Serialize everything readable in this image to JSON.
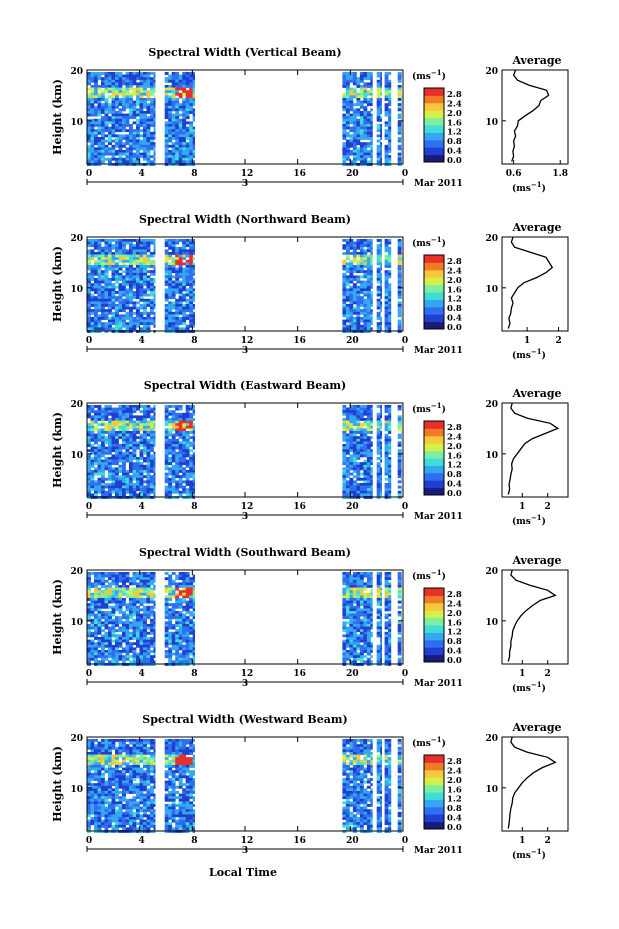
{
  "figure": {
    "x_axis_label": "Local Time",
    "date_label": "Mar 2011",
    "day_label": "3",
    "colorbar_unit_base": "(ms",
    "colorbar_unit_exp": "−1",
    "colorbar_unit_close": ")",
    "profile_title": "Average",
    "profile_unit_base": "(ms",
    "profile_unit_exp": "−1",
    "profile_unit_close": ")",
    "y_label": "Height (km)"
  },
  "colors": {
    "scale": [
      "#1a1a7a",
      "#1f3fd0",
      "#2f6ef0",
      "#33a8f0",
      "#3fdcd8",
      "#7cf0a0",
      "#d6f04a",
      "#f8c83a",
      "#f07a25",
      "#e8302a"
    ]
  },
  "chart_data": [
    {
      "type": "heatmap",
      "title": "Spectral Width (Vertical Beam)",
      "xlabel": "",
      "ylabel": "Height (km)",
      "x_ticks": [
        "0",
        "4",
        "8",
        "12",
        "16",
        "20",
        "0"
      ],
      "y_ticks": [
        "20",
        "10"
      ],
      "xlim": [
        0,
        24
      ],
      "ylim": [
        1.5,
        20
      ],
      "colorbar_ticks": [
        "2.8",
        "2.4",
        "2.0",
        "1.6",
        "1.2",
        "0.8",
        "0.4",
        "0.0"
      ],
      "data_segments_hours": [
        [
          0,
          5.2
        ],
        [
          5.9,
          8.2
        ],
        [
          19.4,
          21.7
        ],
        [
          22.0,
          22.4
        ],
        [
          22.6,
          23.1
        ],
        [
          23.6,
          23.9
        ]
      ],
      "enhanced_layer_km": [
        15,
        17
      ],
      "profile": {
        "type": "line",
        "title": "Average",
        "x_ticks": [
          "0.6",
          "1.8"
        ],
        "xlim": [
          0.3,
          2.0
        ],
        "y_ticks": [
          "20",
          "10"
        ],
        "heights_km": [
          2,
          3,
          4,
          5,
          6,
          7,
          8,
          9,
          10,
          11,
          12,
          13,
          14,
          15,
          16,
          17,
          18,
          19,
          20
        ],
        "values": [
          0.55,
          0.6,
          0.58,
          0.62,
          0.6,
          0.65,
          0.62,
          0.7,
          0.72,
          0.9,
          1.1,
          1.25,
          1.3,
          1.5,
          1.45,
          1.0,
          0.7,
          0.6,
          0.65
        ]
      }
    },
    {
      "type": "heatmap",
      "title": "Spectral Width (Northward Beam)",
      "xlabel": "",
      "ylabel": "Height (km)",
      "x_ticks": [
        "0",
        "4",
        "8",
        "12",
        "16",
        "20",
        "0"
      ],
      "y_ticks": [
        "20",
        "10"
      ],
      "xlim": [
        0,
        24
      ],
      "ylim": [
        1.5,
        20
      ],
      "colorbar_ticks": [
        "2.8",
        "2.4",
        "2.0",
        "1.6",
        "1.2",
        "0.8",
        "0.4",
        "0.0"
      ],
      "data_segments_hours": [
        [
          0,
          5.2
        ],
        [
          5.9,
          8.2
        ],
        [
          19.4,
          21.7
        ],
        [
          22.0,
          22.4
        ],
        [
          22.6,
          23.1
        ],
        [
          23.6,
          23.9
        ]
      ],
      "enhanced_layer_km": [
        15,
        17
      ],
      "profile": {
        "type": "line",
        "title": "Average",
        "x_ticks": [
          "1",
          "2"
        ],
        "xlim": [
          0.2,
          2.3
        ],
        "y_ticks": [
          "20",
          "10"
        ],
        "heights_km": [
          2,
          3,
          4,
          5,
          6,
          7,
          8,
          9,
          10,
          11,
          12,
          13,
          14,
          15,
          16,
          17,
          18,
          19,
          20
        ],
        "values": [
          0.4,
          0.45,
          0.42,
          0.48,
          0.5,
          0.55,
          0.5,
          0.6,
          0.7,
          0.9,
          1.3,
          1.6,
          1.8,
          1.7,
          1.6,
          1.1,
          0.6,
          0.5,
          0.55
        ]
      }
    },
    {
      "type": "heatmap",
      "title": "Spectral Width (Eastward Beam)",
      "xlabel": "",
      "ylabel": "Height (km)",
      "x_ticks": [
        "0",
        "4",
        "8",
        "12",
        "16",
        "20",
        "0"
      ],
      "y_ticks": [
        "20",
        "10"
      ],
      "xlim": [
        0,
        24
      ],
      "ylim": [
        1.5,
        20
      ],
      "colorbar_ticks": [
        "2.8",
        "2.4",
        "2.0",
        "1.6",
        "1.2",
        "0.8",
        "0.4",
        "0.0"
      ],
      "data_segments_hours": [
        [
          0,
          5.2
        ],
        [
          5.9,
          8.2
        ],
        [
          19.4,
          21.7
        ],
        [
          22.0,
          22.4
        ],
        [
          22.6,
          23.1
        ],
        [
          23.6,
          23.9
        ]
      ],
      "enhanced_layer_km": [
        15,
        17
      ],
      "profile": {
        "type": "line",
        "title": "Average",
        "x_ticks": [
          "1",
          "2"
        ],
        "xlim": [
          0.2,
          2.8
        ],
        "y_ticks": [
          "20",
          "10"
        ],
        "heights_km": [
          2,
          3,
          4,
          5,
          6,
          7,
          8,
          9,
          10,
          11,
          12,
          13,
          14,
          15,
          16,
          17,
          18,
          19,
          20
        ],
        "values": [
          0.45,
          0.5,
          0.48,
          0.52,
          0.55,
          0.6,
          0.58,
          0.65,
          0.8,
          0.95,
          1.1,
          1.4,
          1.9,
          2.4,
          2.1,
          1.2,
          0.7,
          0.55,
          0.6
        ]
      }
    },
    {
      "type": "heatmap",
      "title": "Spectral Width (Southward Beam)",
      "xlabel": "",
      "ylabel": "Height (km)",
      "x_ticks": [
        "0",
        "4",
        "8",
        "12",
        "16",
        "20",
        "0"
      ],
      "y_ticks": [
        "20",
        "10"
      ],
      "xlim": [
        0,
        24
      ],
      "ylim": [
        1.5,
        20
      ],
      "colorbar_ticks": [
        "2.8",
        "2.4",
        "2.0",
        "1.6",
        "1.2",
        "0.8",
        "0.4",
        "0.0"
      ],
      "data_segments_hours": [
        [
          0,
          5.2
        ],
        [
          5.9,
          8.2
        ],
        [
          19.4,
          21.7
        ],
        [
          22.0,
          22.4
        ],
        [
          22.6,
          23.1
        ],
        [
          23.6,
          23.9
        ]
      ],
      "enhanced_layer_km": [
        15,
        17
      ],
      "profile": {
        "type": "line",
        "title": "Average",
        "x_ticks": [
          "1",
          "2"
        ],
        "xlim": [
          0.2,
          2.8
        ],
        "y_ticks": [
          "20",
          "10"
        ],
        "heights_km": [
          2,
          3,
          4,
          5,
          6,
          7,
          8,
          9,
          10,
          11,
          12,
          13,
          14,
          15,
          16,
          17,
          18,
          19,
          20
        ],
        "values": [
          0.45,
          0.5,
          0.5,
          0.55,
          0.55,
          0.6,
          0.62,
          0.7,
          0.8,
          0.95,
          1.15,
          1.4,
          1.7,
          2.3,
          2.0,
          1.3,
          0.75,
          0.55,
          0.6
        ]
      }
    },
    {
      "type": "heatmap",
      "title": "Spectral Width (Westward Beam)",
      "xlabel": "Local Time",
      "ylabel": "Height (km)",
      "x_ticks": [
        "0",
        "4",
        "8",
        "12",
        "16",
        "20",
        "0"
      ],
      "y_ticks": [
        "20",
        "10"
      ],
      "xlim": [
        0,
        24
      ],
      "ylim": [
        1.5,
        20
      ],
      "colorbar_ticks": [
        "2.8",
        "2.4",
        "2.0",
        "1.6",
        "1.2",
        "0.8",
        "0.4",
        "0.0"
      ],
      "data_segments_hours": [
        [
          0,
          5.2
        ],
        [
          5.9,
          8.2
        ],
        [
          19.4,
          21.7
        ],
        [
          22.0,
          22.4
        ],
        [
          22.6,
          23.1
        ],
        [
          23.6,
          23.9
        ]
      ],
      "enhanced_layer_km": [
        15,
        17
      ],
      "profile": {
        "type": "line",
        "title": "Average",
        "x_ticks": [
          "1",
          "2"
        ],
        "xlim": [
          0.2,
          2.8
        ],
        "y_ticks": [
          "20",
          "10"
        ],
        "heights_km": [
          2,
          3,
          4,
          5,
          6,
          7,
          8,
          9,
          10,
          11,
          12,
          13,
          14,
          15,
          16,
          17,
          18,
          19,
          20
        ],
        "values": [
          0.45,
          0.48,
          0.5,
          0.52,
          0.55,
          0.6,
          0.62,
          0.7,
          0.85,
          1.0,
          1.2,
          1.45,
          1.8,
          2.3,
          2.0,
          1.2,
          0.7,
          0.55,
          0.6
        ]
      }
    }
  ]
}
